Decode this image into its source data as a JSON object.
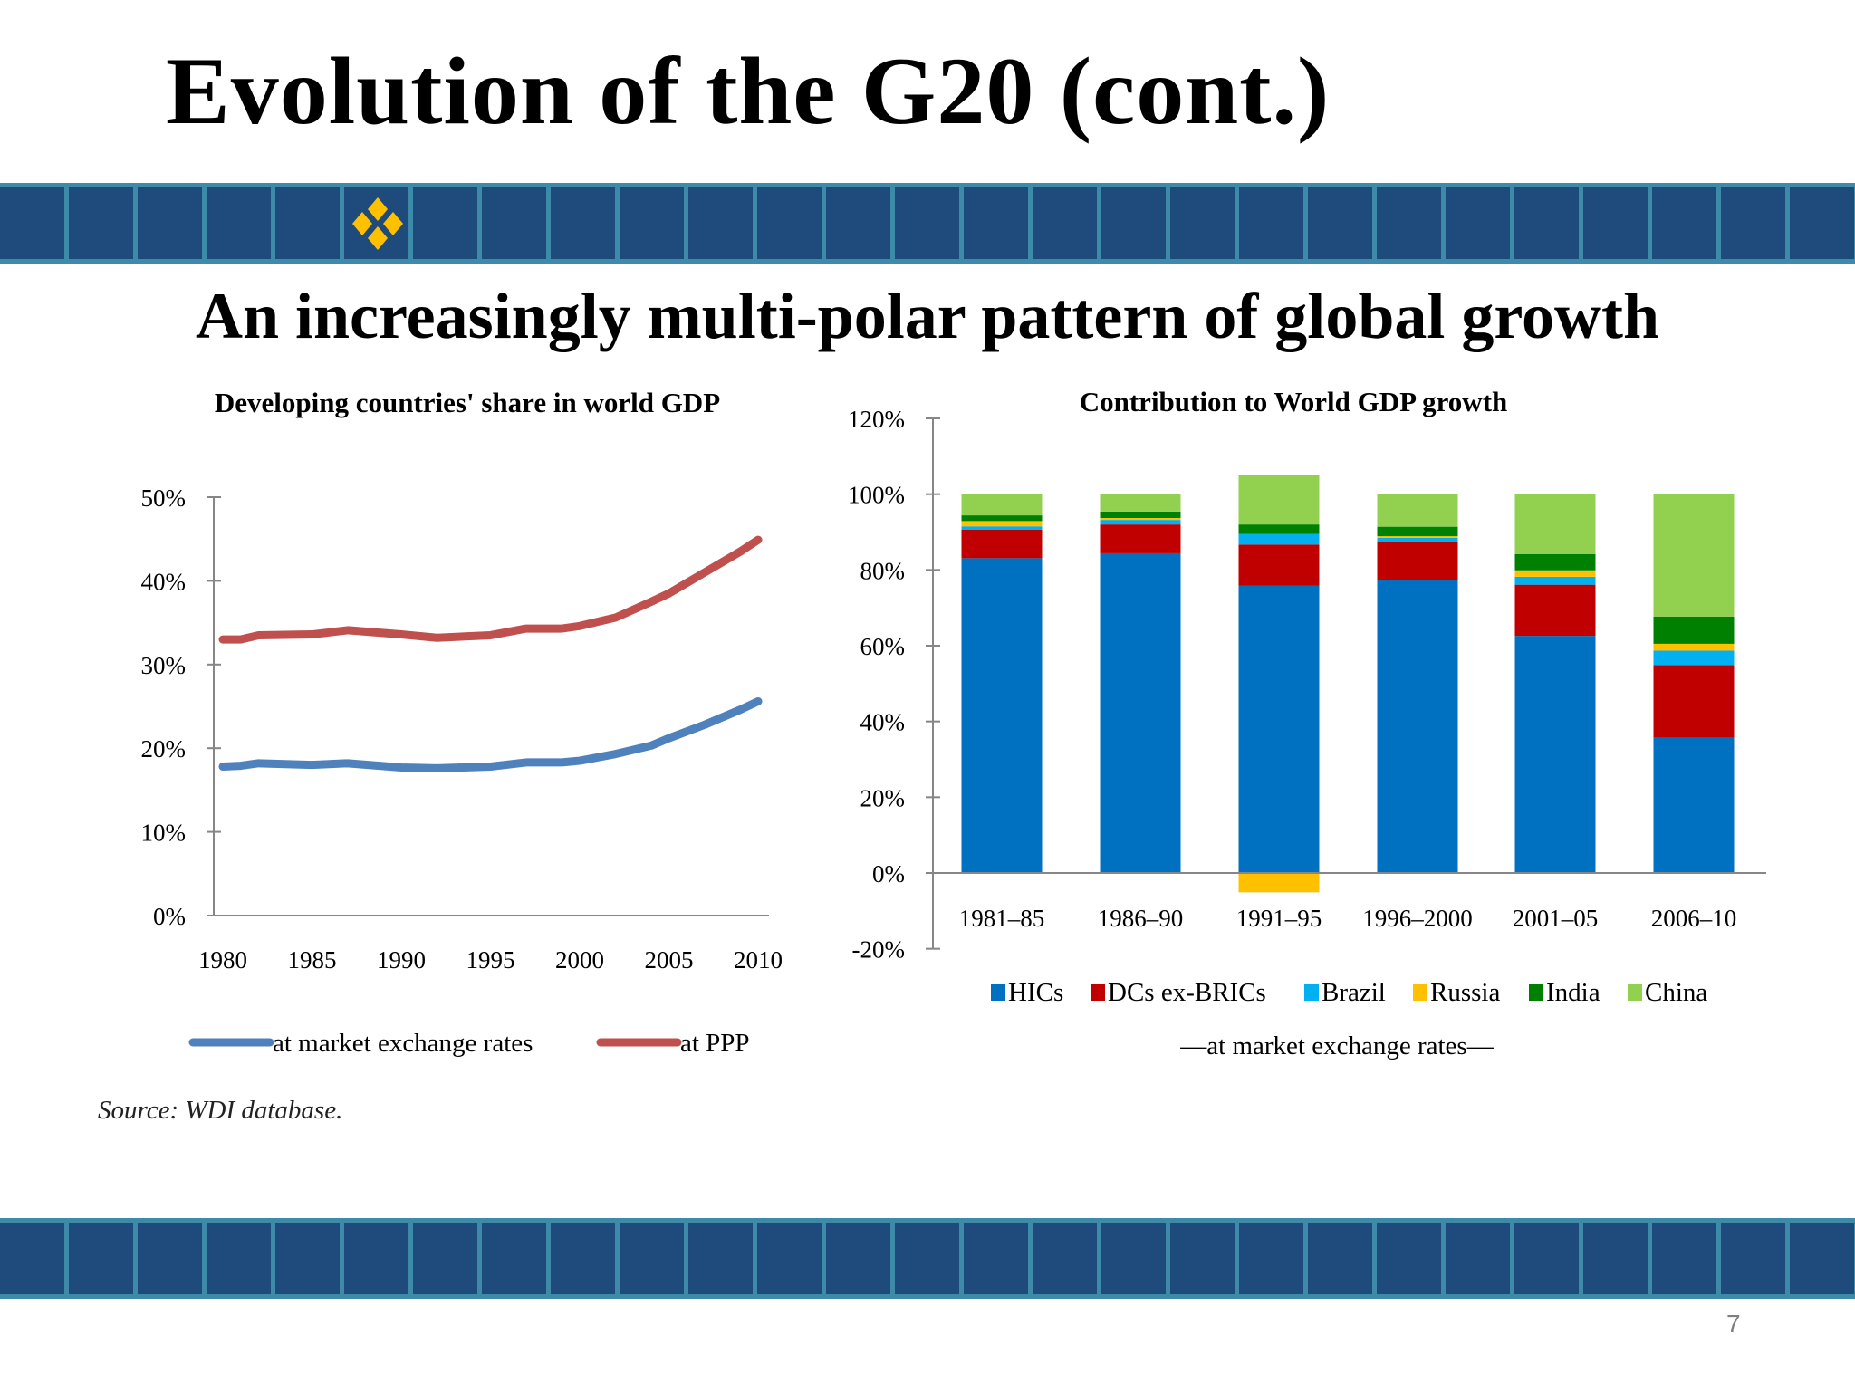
{
  "slide": {
    "title": "Evolution of the G20 (cont.)",
    "subtitle": "An increasingly multi-polar pattern of global growth",
    "source": "Source: WDI database.",
    "page_number": "7",
    "banner_color": "#1f4a7c",
    "banner_border_color": "#3d8aa9",
    "banner_icon": "four-diamonds-icon",
    "banner_icon_color": "#ffc000"
  },
  "chart_data": [
    {
      "type": "line",
      "title": "Developing countries' share in world GDP",
      "xlabel": "",
      "ylabel": "",
      "xlim": [
        1980,
        2010
      ],
      "ylim": [
        0,
        50
      ],
      "x_ticks": [
        "1980",
        "1985",
        "1990",
        "1995",
        "2000",
        "2005",
        "2010"
      ],
      "y_ticks": [
        "0%",
        "10%",
        "20%",
        "30%",
        "40%",
        "50%"
      ],
      "grid": false,
      "legend_position": "bottom",
      "series": [
        {
          "name": "at market exchange rates",
          "color": "#4f81bd",
          "x": [
            1980,
            1981,
            1982,
            1985,
            1987,
            1990,
            1992,
            1995,
            1997,
            1999,
            2000,
            2002,
            2004,
            2005,
            2007,
            2009,
            2010
          ],
          "y": [
            17.8,
            17.9,
            18.2,
            18.0,
            18.2,
            17.7,
            17.6,
            17.8,
            18.3,
            18.3,
            18.5,
            19.3,
            20.3,
            21.2,
            22.8,
            24.6,
            25.6
          ]
        },
        {
          "name": "at PPP",
          "color": "#c0504d",
          "x": [
            1980,
            1981,
            1982,
            1985,
            1987,
            1990,
            1992,
            1994,
            1995,
            1997,
            1999,
            2000,
            2002,
            2004,
            2005,
            2007,
            2009,
            2010
          ],
          "y": [
            33.0,
            33.0,
            33.5,
            33.6,
            34.1,
            33.6,
            33.2,
            33.4,
            33.5,
            34.3,
            34.3,
            34.6,
            35.6,
            37.5,
            38.5,
            41.0,
            43.5,
            44.9
          ]
        }
      ]
    },
    {
      "type": "bar",
      "stacked": true,
      "title": "Contribution to World GDP growth",
      "subtitle": "—at market exchange rates—",
      "categories": [
        "1981–85",
        "1986–90",
        "1991–95",
        "1996–2000",
        "2001–05",
        "2006–10"
      ],
      "ylim": [
        -20,
        120
      ],
      "y_ticks": [
        "-20%",
        "0%",
        "20%",
        "40%",
        "60%",
        "80%",
        "100%",
        "120%"
      ],
      "grid": false,
      "legend_position": "bottom",
      "series": [
        {
          "name": "HICs",
          "color": "#0070c0",
          "values": [
            83.1,
            84.4,
            75.9,
            77.4,
            62.6,
            35.7
          ]
        },
        {
          "name": "DCs ex-BRICs",
          "color": "#c00000",
          "values": [
            7.5,
            7.6,
            10.8,
            9.9,
            13.5,
            19.2
          ]
        },
        {
          "name": "Brazil",
          "color": "#00b0f0",
          "values": [
            0.9,
            1.2,
            2.8,
            1.2,
            2.1,
            3.8
          ]
        },
        {
          "name": "Russia",
          "color": "#ffc000",
          "values": [
            1.4,
            0.5,
            -5.1,
            0.4,
            1.7,
            1.8
          ]
        },
        {
          "name": "India",
          "color": "#008000",
          "values": [
            1.5,
            1.7,
            2.5,
            2.5,
            4.3,
            7.2
          ]
        },
        {
          "name": "China",
          "color": "#92d050",
          "values": [
            5.6,
            4.6,
            13.1,
            8.6,
            15.8,
            32.3
          ]
        }
      ]
    }
  ]
}
